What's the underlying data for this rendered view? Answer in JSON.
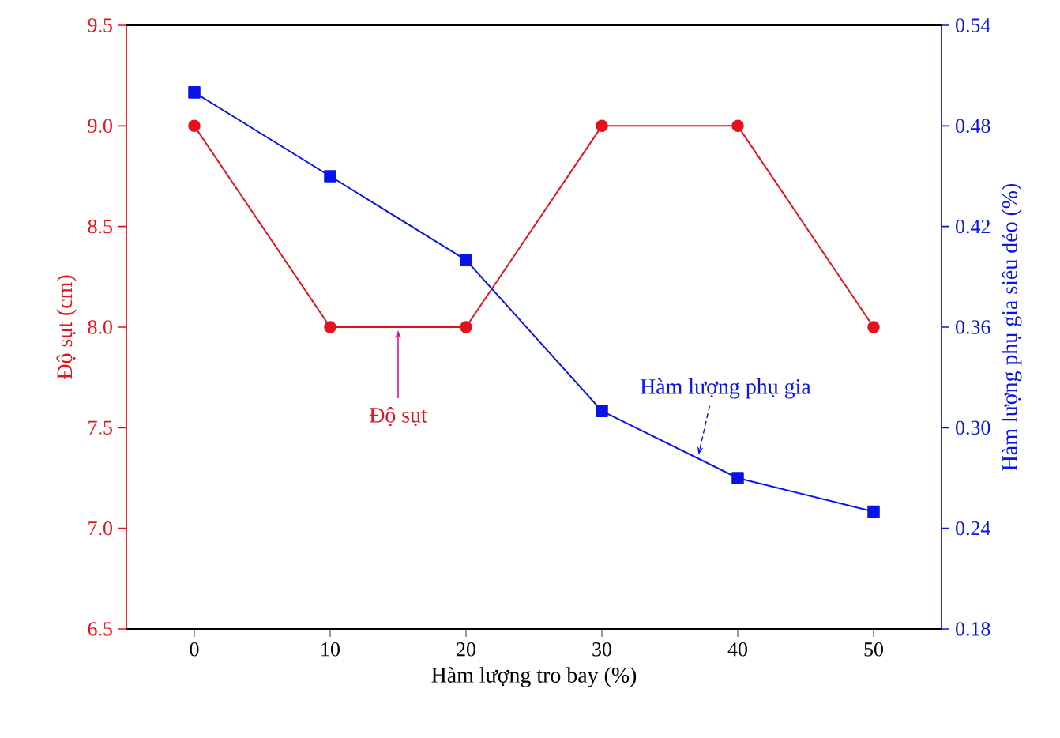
{
  "chart_data": {
    "type": "line",
    "xlabel": "Hàm lượng tro bay (%)",
    "ylabel": "Độ sụt (cm)",
    "y2label": "Hàm lượng phụ gia siêu dẻo (%)",
    "x": [
      0,
      10,
      20,
      30,
      40,
      50
    ],
    "series": [
      {
        "color": "#e8101c",
        "marker": "circle",
        "values": [
          9.0,
          8.0,
          8.0,
          9.0,
          9.0,
          8.0
        ]
      },
      {
        "color": "#0a14e6",
        "marker": "square",
        "axis": "y2",
        "values": [
          0.5,
          0.45,
          0.4,
          0.31,
          0.27,
          0.25
        ]
      }
    ],
    "xlim": [
      -5,
      55
    ],
    "xticks": [
      0,
      10,
      20,
      30,
      40,
      50
    ],
    "ylim": [
      6.5,
      9.5
    ],
    "yticks": [
      {
        "value": 6.5,
        "label": "6.5"
      },
      {
        "value": 7.0,
        "label": "7.0"
      },
      {
        "value": 7.5,
        "label": "7.5"
      },
      {
        "value": 8.0,
        "label": "8.0"
      },
      {
        "value": 8.5,
        "label": "8.5"
      },
      {
        "value": 9.0,
        "label": "9.0"
      },
      {
        "value": 9.5,
        "label": "9.5"
      }
    ],
    "y2lim": [
      0.18,
      0.54
    ],
    "y2ticks": [
      {
        "value": 0.18,
        "label": "0.18"
      },
      {
        "value": 0.24,
        "label": "0.24"
      },
      {
        "value": 0.3,
        "label": "0.30"
      },
      {
        "value": 0.36,
        "label": "0.36"
      },
      {
        "value": 0.42,
        "label": "0.42"
      },
      {
        "value": 0.48,
        "label": "0.48"
      },
      {
        "value": 0.54,
        "label": "0.54"
      }
    ],
    "annotations": [
      {
        "text": "Độ sụt",
        "x": 15,
        "y": 8.0
      },
      {
        "text": "Hàm lượng phụ gia",
        "x": 37,
        "y": 7.35
      }
    ],
    "grid": false,
    "line_style": "solid"
  }
}
